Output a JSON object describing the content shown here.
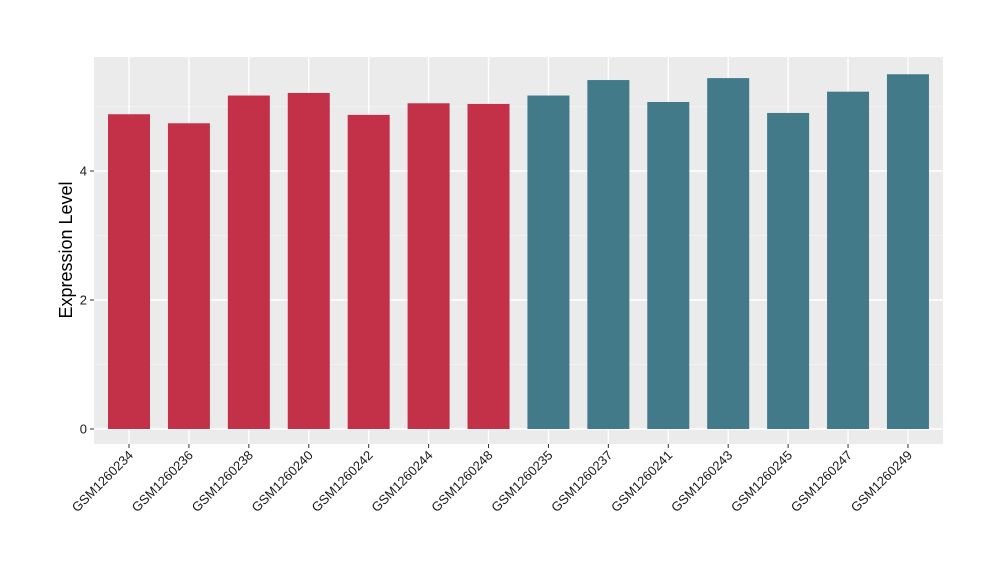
{
  "chart_data": {
    "type": "bar",
    "title": "",
    "xlabel": "",
    "ylabel": "Expression Level",
    "ylim": [
      0,
      5.8
    ],
    "y_ticks": [
      0,
      2,
      4
    ],
    "grid": true,
    "panel_background": "#EBEBEB",
    "categories": [
      "GSM1260234",
      "GSM1260236",
      "GSM1260238",
      "GSM1260240",
      "GSM1260242",
      "GSM1260244",
      "GSM1260248",
      "GSM1260235",
      "GSM1260237",
      "GSM1260241",
      "GSM1260243",
      "GSM1260245",
      "GSM1260247",
      "GSM1260249"
    ],
    "values": [
      4.88,
      4.74,
      5.17,
      5.21,
      4.87,
      5.05,
      5.04,
      5.17,
      5.41,
      5.07,
      5.44,
      4.9,
      5.23,
      5.5
    ],
    "bar_colors": [
      "#C33149",
      "#C33149",
      "#C33149",
      "#C33149",
      "#C33149",
      "#C33149",
      "#C33149",
      "#427A8A",
      "#427A8A",
      "#427A8A",
      "#427A8A",
      "#427A8A",
      "#427A8A",
      "#427A8A"
    ]
  }
}
